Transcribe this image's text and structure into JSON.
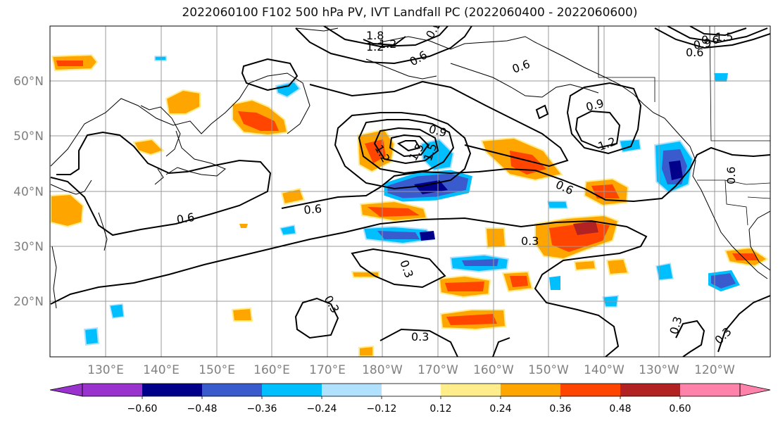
{
  "title": "2022060100 F102 500 hPa PV, IVT Landfall PC (2022060400 - 2022060600)",
  "lat_labels": [
    "60°N",
    "50°N",
    "40°N",
    "30°N",
    "20°N"
  ],
  "lon_labels": [
    "130°E",
    "140°E",
    "150°E",
    "160°E",
    "170°E",
    "180°W",
    "170°W",
    "160°W",
    "150°W",
    "140°W",
    "130°W",
    "120°W"
  ],
  "contour_labels": [
    "0.6",
    "0.6",
    "0.6",
    "0.6",
    "0.3",
    "0.3",
    "0.3",
    "0.3",
    "0.3",
    "0.3",
    "0.9",
    "0.9",
    "1.2",
    "1.5",
    "1.2",
    "1.5",
    "0.6",
    "0.9",
    "0.6",
    "1.2",
    "1.8",
    "1.2",
    "0.9",
    "0.6",
    "1.5",
    "0.9",
    "0.6"
  ],
  "colorbar": {
    "ticks": [
      "−0.60",
      "−0.48",
      "−0.36",
      "−0.24",
      "−0.12",
      "0.12",
      "0.24",
      "0.36",
      "0.48",
      "0.60"
    ],
    "colors": [
      "#9a32cd",
      "#00008b",
      "#3a5bcd",
      "#00bfff",
      "#b0e2ff",
      "#ffffff",
      "#ffec8b",
      "#ffa500",
      "#ff4500",
      "#b22222",
      "#ff82ab"
    ]
  },
  "colors": {
    "negative_dark": "#00008b",
    "negative_mid": "#3a5bcd",
    "negative_light": "#00bfff",
    "negative_faint": "#b0e2ff",
    "positive_faint": "#ffec8b",
    "positive_light": "#ffa500",
    "positive_mid": "#ff4500",
    "positive_dark": "#b22222"
  }
}
